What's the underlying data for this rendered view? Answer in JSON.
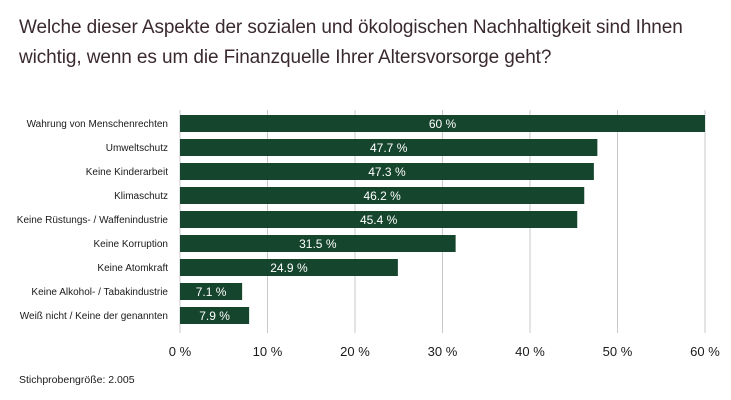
{
  "chart_data": {
    "type": "bar",
    "orientation": "horizontal",
    "title": "Welche dieser Aspekte der sozialen und ökologischen Nachhaltigkeit sind Ihnen wichtig, wenn es um die Finanzquelle Ihrer Altersvorsorge geht?",
    "categories": [
      "Wahrung von Menschenrechten",
      "Umweltschutz",
      "Keine Kinderarbeit",
      "Klimaschutz",
      "Keine Rüstungs- /  Waffenindustrie",
      "Keine Korruption",
      "Keine Atomkraft",
      "Keine Alkohol- /  Tabakindustrie",
      "Weiß nicht /  Keine der genannten"
    ],
    "values": [
      60,
      47.7,
      47.3,
      46.2,
      45.4,
      31.5,
      24.9,
      7.1,
      7.9
    ],
    "value_labels": [
      "60 %",
      "47.7 %",
      "47.3 %",
      "46.2 %",
      "45.4 %",
      "31.5 %",
      "24.9 %",
      "7.1 %",
      "7.9 %"
    ],
    "xlim": [
      0,
      60
    ],
    "xticks": [
      0,
      10,
      20,
      30,
      40,
      50,
      60
    ],
    "xtick_labels": [
      "0 %",
      "10 %",
      "20 %",
      "30 %",
      "40 %",
      "50 %",
      "60 %"
    ],
    "grid": true,
    "bar_color": "#16452d",
    "grid_color": "#c8c8c8"
  },
  "footnote": "Stichprobengröße: 2.005"
}
